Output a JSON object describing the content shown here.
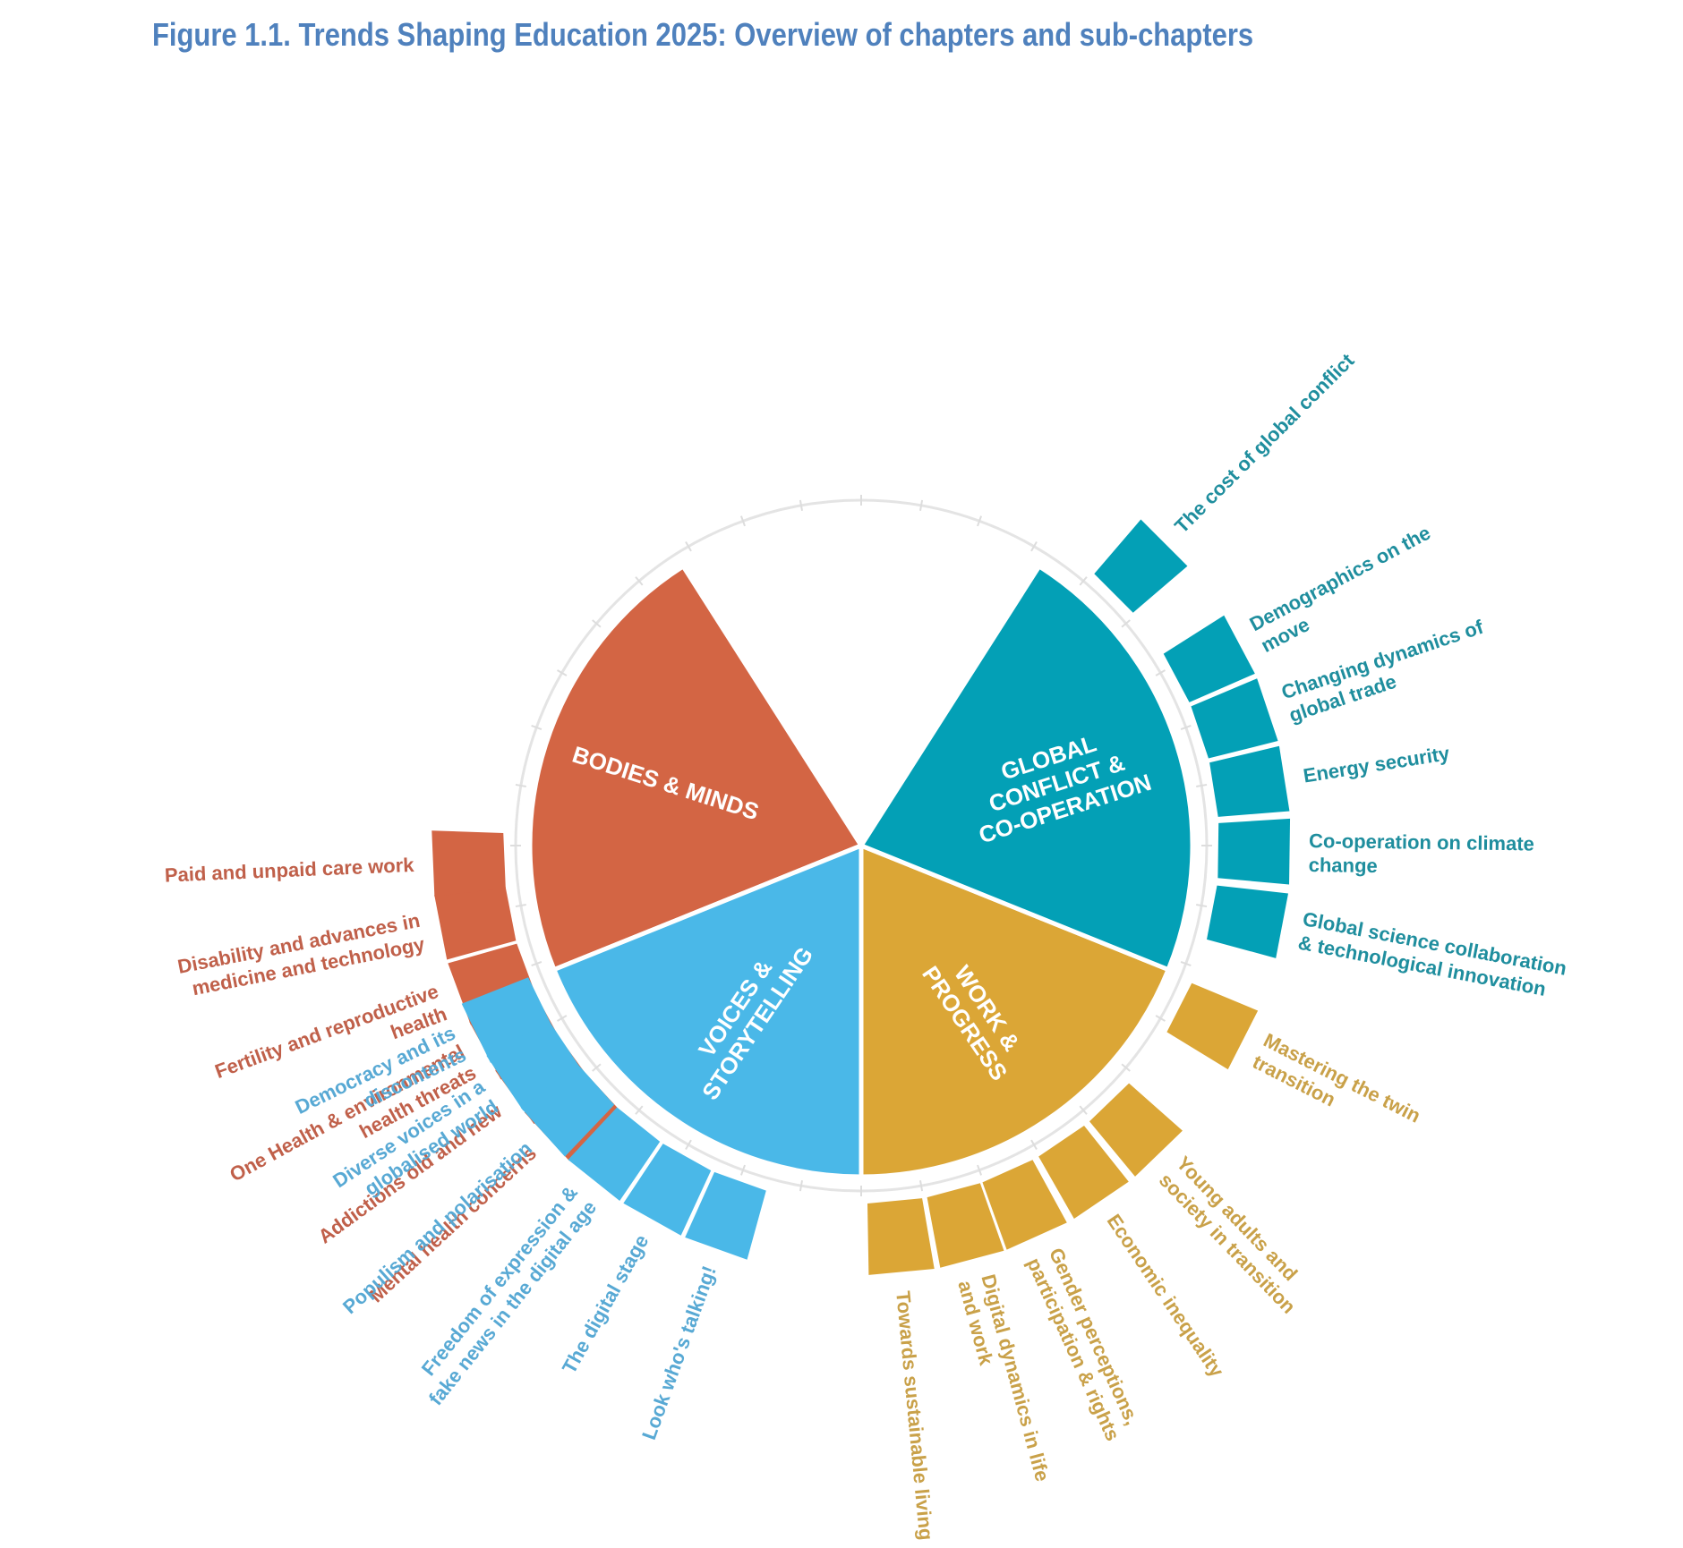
{
  "title": "Figure 1.1. Trends Shaping Education 2025: Overview of chapters and sub-chapters",
  "chapters": [
    {
      "id": "bodies",
      "lines": [
        "BODIES & MINDS"
      ],
      "color": "#d36544",
      "text_color": "#c0604a",
      "subchapters": [
        {
          "lines": [
            "Mental health concerns"
          ]
        },
        {
          "lines": [
            "Addictions old and new"
          ]
        },
        {
          "lines": [
            "One Health & environmental",
            "health threats"
          ]
        },
        {
          "lines": [
            "Fertility and reproductive",
            "health"
          ]
        },
        {
          "lines": [
            "Disability and advances in",
            "medicine and technology"
          ]
        },
        {
          "lines": [
            "Paid and unpaid care work"
          ]
        }
      ]
    },
    {
      "id": "voices",
      "lines": [
        "VOICES &",
        "STORYTELLING"
      ],
      "color": "#4ab8e8",
      "text_color": "#58a9d4",
      "subchapters": [
        {
          "lines": [
            "Democracy and its",
            "discontents"
          ]
        },
        {
          "lines": [
            "Diverse voices in a",
            "globalised world"
          ]
        },
        {
          "lines": [
            "Populism and polarisation"
          ]
        },
        {
          "lines": [
            "Freedom of expression &",
            "fake news in the digital age"
          ]
        },
        {
          "lines": [
            "The digital stage"
          ]
        },
        {
          "lines": [
            "Look who's talking!"
          ]
        }
      ]
    },
    {
      "id": "work",
      "lines": [
        "WORK &",
        "PROGRESS"
      ],
      "color": "#dba636",
      "text_color": "#c9a149",
      "subchapters": [
        {
          "lines": [
            "Towards sustainable living"
          ]
        },
        {
          "lines": [
            "Digital dynamics in life",
            "and work"
          ]
        },
        {
          "lines": [
            "Gender perceptions,",
            "participation & rights"
          ]
        },
        {
          "lines": [
            "Economic inequality"
          ]
        },
        {
          "lines": [
            "Young adults and",
            "society in transition"
          ]
        },
        {
          "lines": [
            "Mastering the twin",
            "transition"
          ]
        }
      ]
    },
    {
      "id": "global",
      "lines": [
        "GLOBAL",
        "CONFLICT &",
        "CO-OPERATION"
      ],
      "color": "#03a0b6",
      "text_color": "#1f8e9e",
      "subchapters": [
        {
          "lines": [
            "Global science collaboration",
            "& technological innovation"
          ]
        },
        {
          "lines": [
            "Co-operation on climate",
            "change"
          ]
        },
        {
          "lines": [
            "Energy security"
          ]
        },
        {
          "lines": [
            "Changing dynamics of",
            "global trade"
          ]
        },
        {
          "lines": [
            "Demographics on the",
            "move"
          ]
        },
        {
          "lines": [
            "The cost of global conflict"
          ]
        }
      ]
    }
  ]
}
